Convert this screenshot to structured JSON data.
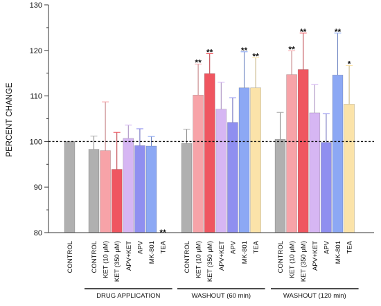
{
  "chart_data": {
    "type": "bar",
    "ylabel": "PERCENT CHANGE",
    "ylim": [
      80,
      130
    ],
    "yticks": [
      "80",
      "90",
      "100",
      "110",
      "120",
      "130"
    ],
    "reference_line": 100,
    "groups": [
      {
        "name": "",
        "bars": [
          {
            "label": "CONTROL",
            "value": 100.0,
            "error": 0,
            "color": "#b0b0b0",
            "sig": ""
          }
        ]
      },
      {
        "name": "DRUG APPLICATION",
        "bars": [
          {
            "label": "CONTROL",
            "value": 98.3,
            "error": 2.9,
            "color": "#b0b0b0",
            "sig": ""
          },
          {
            "label": "KET (10 μM)",
            "value": 98.0,
            "error": 10.7,
            "color": "#f7a3a8",
            "sig": ""
          },
          {
            "label": "KET (350 μM)",
            "value": 93.9,
            "error": 8.1,
            "color": "#ef5660",
            "sig": ""
          },
          {
            "label": "APV+KET",
            "value": 100.7,
            "error": 2.9,
            "color": "#d6b6f3",
            "sig": ""
          },
          {
            "label": "APV",
            "value": 99.1,
            "error": 3.7,
            "color": "#8f8ff0",
            "sig": ""
          },
          {
            "label": "MK-801",
            "value": 99.0,
            "error": 2.1,
            "color": "#8ca8f4",
            "sig": ""
          },
          {
            "label": "TEA",
            "value": 80.0,
            "error": 0,
            "color": "#fbe3a9",
            "sig": "**"
          }
        ]
      },
      {
        "name": "WASHOUT (60 min)",
        "bars": [
          {
            "label": "CONTROL",
            "value": 99.6,
            "error": 3.1,
            "color": "#b0b0b0",
            "sig": ""
          },
          {
            "label": "KET (10 μM)",
            "value": 110.2,
            "error": 6.8,
            "color": "#f7a3a8",
            "sig": "**"
          },
          {
            "label": "KET (350 μM)",
            "value": 114.9,
            "error": 4.4,
            "color": "#ef5660",
            "sig": "**"
          },
          {
            "label": "APV+KET",
            "value": 107.1,
            "error": 5.9,
            "color": "#d6b6f3",
            "sig": ""
          },
          {
            "label": "APV",
            "value": 104.2,
            "error": 5.4,
            "color": "#8f8ff0",
            "sig": ""
          },
          {
            "label": "MK-801",
            "value": 111.8,
            "error": 7.9,
            "color": "#8ca8f4",
            "sig": "**"
          },
          {
            "label": "TEA",
            "value": 111.8,
            "error": 6.6,
            "color": "#fbe3a9",
            "sig": "**"
          }
        ]
      },
      {
        "name": "WASHOUT (120 min)",
        "bars": [
          {
            "label": "CONTROL",
            "value": 100.5,
            "error": 5.9,
            "color": "#b0b0b0",
            "sig": ""
          },
          {
            "label": "KET (10 μM)",
            "value": 114.7,
            "error": 5.2,
            "color": "#f7a3a8",
            "sig": "**"
          },
          {
            "label": "KET (350 μM)",
            "value": 115.8,
            "error": 8.0,
            "color": "#ef5660",
            "sig": "**"
          },
          {
            "label": "APV+KET",
            "value": 106.3,
            "error": 6.2,
            "color": "#d6b6f3",
            "sig": ""
          },
          {
            "label": "APV",
            "value": 99.8,
            "error": 6.3,
            "color": "#8f8ff0",
            "sig": ""
          },
          {
            "label": "MK-801",
            "value": 114.6,
            "error": 9.2,
            "color": "#8ca8f4",
            "sig": "**"
          },
          {
            "label": "TEA",
            "value": 108.2,
            "error": 8.5,
            "color": "#fbe3a9",
            "sig": "*"
          }
        ]
      }
    ]
  }
}
